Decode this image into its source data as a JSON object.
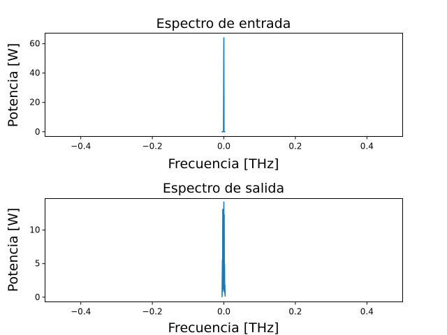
{
  "chart_data": [
    {
      "type": "line",
      "title": "Espectro de entrada",
      "xlabel": "Frecuencia [THz]",
      "ylabel": "Potencia [W]",
      "xlim": [
        -0.5,
        0.5
      ],
      "ylim": [
        -3.2,
        67.2
      ],
      "xticks": [
        -0.4,
        -0.2,
        0.0,
        0.2,
        0.4
      ],
      "xtick_labels": [
        "−0.4",
        "−0.2",
        "0.0",
        "0.2",
        "0.4"
      ],
      "yticks": [
        0,
        20,
        40,
        60
      ],
      "ytick_labels": [
        "0",
        "20",
        "40",
        "60"
      ],
      "grid": false,
      "series": [
        {
          "color": "#1f77b4",
          "x": [
            -0.006,
            -0.004,
            -0.002,
            -0.001,
            0.0,
            0.0005,
            0.001,
            0.002,
            0.004
          ],
          "y": [
            0,
            0,
            0,
            0.3,
            64,
            0.3,
            0,
            0,
            0
          ]
        }
      ]
    },
    {
      "type": "line",
      "title": "Espectro de salida",
      "xlabel": "Frecuencia [THz]",
      "ylabel": "Potencia [W]",
      "xlim": [
        -0.5,
        0.5
      ],
      "ylim": [
        -0.7,
        14.7
      ],
      "xticks": [
        -0.4,
        -0.2,
        0.0,
        0.2,
        0.4
      ],
      "xtick_labels": [
        "−0.4",
        "−0.2",
        "0.0",
        "0.2",
        "0.4"
      ],
      "yticks": [
        0,
        5,
        10
      ],
      "ytick_labels": [
        "0",
        "5",
        "10"
      ],
      "grid": false,
      "series": [
        {
          "color": "#1f77b4",
          "x": [
            -0.005,
            -0.004,
            -0.0035,
            -0.003,
            -0.0025,
            -0.002,
            -0.0015,
            -0.001,
            -0.0005,
            0.0,
            0.0005,
            0.001,
            0.0015,
            0.002,
            0.0025,
            0.003,
            0.0035,
            0.004
          ],
          "y": [
            0,
            5.6,
            0.8,
            13.1,
            1.2,
            12.7,
            2.0,
            1.5,
            4.5,
            14.2,
            1.0,
            12.3,
            0.8,
            4.9,
            0.6,
            1.8,
            0.3,
            0.1
          ]
        }
      ]
    }
  ]
}
